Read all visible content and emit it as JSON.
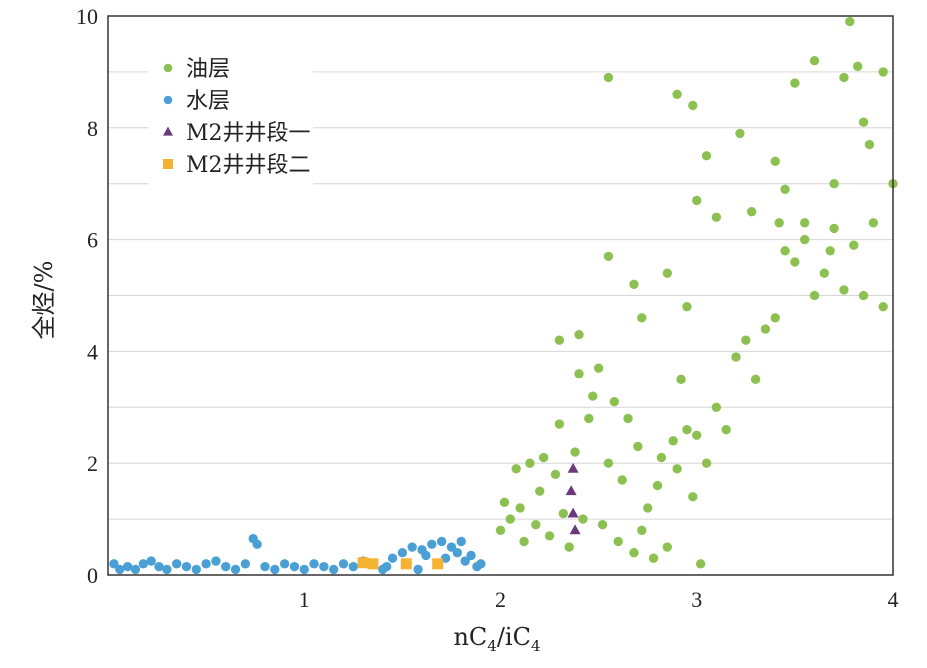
{
  "chart_data": {
    "type": "scatter",
    "title": "",
    "xlabel": {
      "pre": "nC",
      "sub1": "4",
      "mid": "/iC",
      "sub2": "4"
    },
    "ylabel": "全烃/%",
    "xlim": [
      0,
      4
    ],
    "ylim": [
      0,
      10
    ],
    "x_ticks": [
      "1",
      "2",
      "3",
      "4"
    ],
    "y_ticks": [
      "0",
      "2",
      "4",
      "6",
      "8",
      "10"
    ],
    "grid": "horizontal",
    "legend_position": "top-left",
    "series": [
      {
        "name": "油层",
        "marker": "circle",
        "color": "#8cc152",
        "points": [
          [
            2.0,
            0.8
          ],
          [
            2.02,
            1.3
          ],
          [
            2.05,
            1.0
          ],
          [
            2.08,
            1.9
          ],
          [
            2.1,
            1.2
          ],
          [
            2.12,
            0.6
          ],
          [
            2.15,
            2.0
          ],
          [
            2.18,
            0.9
          ],
          [
            2.2,
            1.5
          ],
          [
            2.22,
            2.1
          ],
          [
            2.25,
            0.7
          ],
          [
            2.28,
            1.8
          ],
          [
            2.3,
            2.7
          ],
          [
            2.32,
            1.1
          ],
          [
            2.35,
            0.5
          ],
          [
            2.38,
            2.2
          ],
          [
            2.4,
            3.6
          ],
          [
            2.42,
            1.0
          ],
          [
            2.45,
            2.8
          ],
          [
            2.47,
            3.2
          ],
          [
            2.5,
            3.7
          ],
          [
            2.52,
            0.9
          ],
          [
            2.55,
            2.0
          ],
          [
            2.58,
            3.1
          ],
          [
            2.6,
            0.6
          ],
          [
            2.62,
            1.7
          ],
          [
            2.65,
            2.8
          ],
          [
            2.68,
            0.4
          ],
          [
            2.7,
            2.3
          ],
          [
            2.72,
            0.8
          ],
          [
            2.75,
            1.2
          ],
          [
            2.78,
            0.3
          ],
          [
            2.8,
            1.6
          ],
          [
            2.82,
            2.1
          ],
          [
            2.85,
            0.5
          ],
          [
            2.88,
            2.4
          ],
          [
            2.9,
            1.9
          ],
          [
            2.92,
            3.5
          ],
          [
            2.95,
            2.6
          ],
          [
            2.98,
            1.4
          ],
          [
            3.0,
            2.5
          ],
          [
            3.02,
            0.2
          ],
          [
            3.05,
            2.0
          ],
          [
            3.1,
            3.0
          ],
          [
            3.15,
            2.6
          ],
          [
            3.2,
            3.9
          ],
          [
            3.25,
            4.2
          ],
          [
            3.3,
            3.5
          ],
          [
            3.35,
            4.4
          ],
          [
            3.4,
            4.6
          ],
          [
            3.45,
            5.8
          ],
          [
            3.5,
            5.6
          ],
          [
            3.55,
            6.3
          ],
          [
            3.6,
            5.0
          ],
          [
            3.65,
            5.4
          ],
          [
            3.7,
            6.2
          ],
          [
            3.75,
            5.1
          ],
          [
            3.8,
            5.9
          ],
          [
            3.85,
            5.0
          ],
          [
            3.9,
            6.3
          ],
          [
            3.95,
            4.8
          ],
          [
            2.3,
            4.2
          ],
          [
            2.4,
            4.3
          ],
          [
            2.55,
            5.7
          ],
          [
            2.68,
            5.2
          ],
          [
            2.72,
            4.6
          ],
          [
            2.85,
            5.4
          ],
          [
            2.95,
            4.8
          ],
          [
            3.0,
            6.7
          ],
          [
            3.05,
            7.5
          ],
          [
            3.1,
            6.4
          ],
          [
            3.22,
            7.9
          ],
          [
            3.28,
            6.5
          ],
          [
            3.4,
            7.4
          ],
          [
            3.45,
            6.9
          ],
          [
            3.5,
            8.8
          ],
          [
            3.6,
            9.2
          ],
          [
            3.7,
            7.0
          ],
          [
            3.78,
            9.9
          ],
          [
            3.82,
            9.1
          ],
          [
            3.88,
            7.7
          ],
          [
            3.95,
            9.0
          ],
          [
            4.0,
            7.0
          ],
          [
            3.75,
            8.9
          ],
          [
            3.85,
            8.1
          ],
          [
            2.9,
            8.6
          ],
          [
            2.98,
            8.4
          ],
          [
            2.55,
            8.9
          ],
          [
            3.42,
            6.3
          ],
          [
            3.55,
            6.0
          ],
          [
            3.68,
            5.8
          ]
        ]
      },
      {
        "name": "水层",
        "marker": "circle",
        "color": "#4a9fd5",
        "points": [
          [
            0.03,
            0.2
          ],
          [
            0.06,
            0.1
          ],
          [
            0.1,
            0.15
          ],
          [
            0.14,
            0.1
          ],
          [
            0.18,
            0.2
          ],
          [
            0.22,
            0.25
          ],
          [
            0.26,
            0.15
          ],
          [
            0.3,
            0.1
          ],
          [
            0.35,
            0.2
          ],
          [
            0.4,
            0.15
          ],
          [
            0.45,
            0.1
          ],
          [
            0.5,
            0.2
          ],
          [
            0.55,
            0.25
          ],
          [
            0.6,
            0.15
          ],
          [
            0.65,
            0.1
          ],
          [
            0.7,
            0.2
          ],
          [
            0.74,
            0.65
          ],
          [
            0.76,
            0.55
          ],
          [
            0.8,
            0.15
          ],
          [
            0.85,
            0.1
          ],
          [
            0.9,
            0.2
          ],
          [
            0.95,
            0.15
          ],
          [
            1.0,
            0.1
          ],
          [
            1.05,
            0.2
          ],
          [
            1.1,
            0.15
          ],
          [
            1.15,
            0.1
          ],
          [
            1.2,
            0.2
          ],
          [
            1.25,
            0.15
          ],
          [
            1.3,
            0.25
          ],
          [
            1.35,
            0.2
          ],
          [
            1.4,
            0.1
          ],
          [
            1.45,
            0.3
          ],
          [
            1.5,
            0.4
          ],
          [
            1.55,
            0.5
          ],
          [
            1.6,
            0.45
          ],
          [
            1.62,
            0.35
          ],
          [
            1.65,
            0.55
          ],
          [
            1.7,
            0.6
          ],
          [
            1.72,
            0.3
          ],
          [
            1.75,
            0.5
          ],
          [
            1.78,
            0.4
          ],
          [
            1.8,
            0.6
          ],
          [
            1.82,
            0.25
          ],
          [
            1.85,
            0.35
          ],
          [
            1.88,
            0.15
          ],
          [
            1.9,
            0.2
          ],
          [
            1.52,
            0.2
          ],
          [
            1.58,
            0.1
          ],
          [
            1.68,
            0.2
          ],
          [
            1.42,
            0.15
          ]
        ]
      },
      {
        "name": "M2井井段一",
        "marker": "triangle",
        "color": "#6b3a7d",
        "points": [
          [
            2.37,
            1.9
          ],
          [
            2.36,
            1.5
          ],
          [
            2.37,
            1.1
          ],
          [
            2.38,
            0.8
          ]
        ]
      },
      {
        "name": "M2井井段二",
        "marker": "square",
        "color": "#f5b333",
        "points": [
          [
            1.3,
            0.22
          ],
          [
            1.35,
            0.2
          ],
          [
            1.52,
            0.2
          ],
          [
            1.68,
            0.2
          ]
        ]
      }
    ]
  }
}
